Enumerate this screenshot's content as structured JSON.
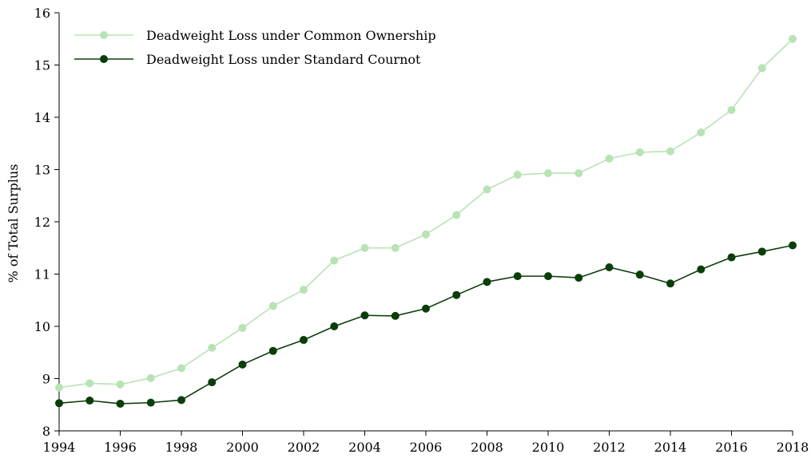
{
  "chart_data": {
    "type": "line",
    "xlabel": "",
    "ylabel": "% of Total Surplus",
    "xlim": [
      1994,
      2018
    ],
    "ylim": [
      8,
      16
    ],
    "x_ticks": [
      1994,
      1996,
      1998,
      2000,
      2002,
      2004,
      2006,
      2008,
      2010,
      2012,
      2014,
      2016,
      2018
    ],
    "y_ticks": [
      8,
      9,
      10,
      11,
      12,
      13,
      14,
      15,
      16
    ],
    "grid": false,
    "legend_position": "top-left",
    "x": [
      1994,
      1995,
      1996,
      1997,
      1998,
      1999,
      2000,
      2001,
      2002,
      2003,
      2004,
      2005,
      2006,
      2007,
      2008,
      2009,
      2010,
      2011,
      2012,
      2013,
      2014,
      2015,
      2016,
      2017,
      2018
    ],
    "series": [
      {
        "name": "Deadweight Loss under Common Ownership",
        "color": "#b8e3b5",
        "values": [
          8.83,
          8.91,
          8.89,
          9.01,
          9.2,
          9.59,
          9.97,
          10.39,
          10.7,
          11.26,
          11.5,
          11.5,
          11.76,
          12.13,
          12.62,
          12.9,
          12.93,
          12.93,
          13.21,
          13.33,
          13.35,
          13.71,
          14.14,
          14.94,
          15.5
        ]
      },
      {
        "name": "Deadweight Loss under Standard Cournot",
        "color": "#0b3d0b",
        "values": [
          8.53,
          8.58,
          8.52,
          8.54,
          8.59,
          8.93,
          9.27,
          9.53,
          9.74,
          10.0,
          10.21,
          10.2,
          10.34,
          10.6,
          10.85,
          10.96,
          10.96,
          10.93,
          11.13,
          10.99,
          10.82,
          11.09,
          11.32,
          11.43,
          11.55
        ]
      }
    ]
  }
}
